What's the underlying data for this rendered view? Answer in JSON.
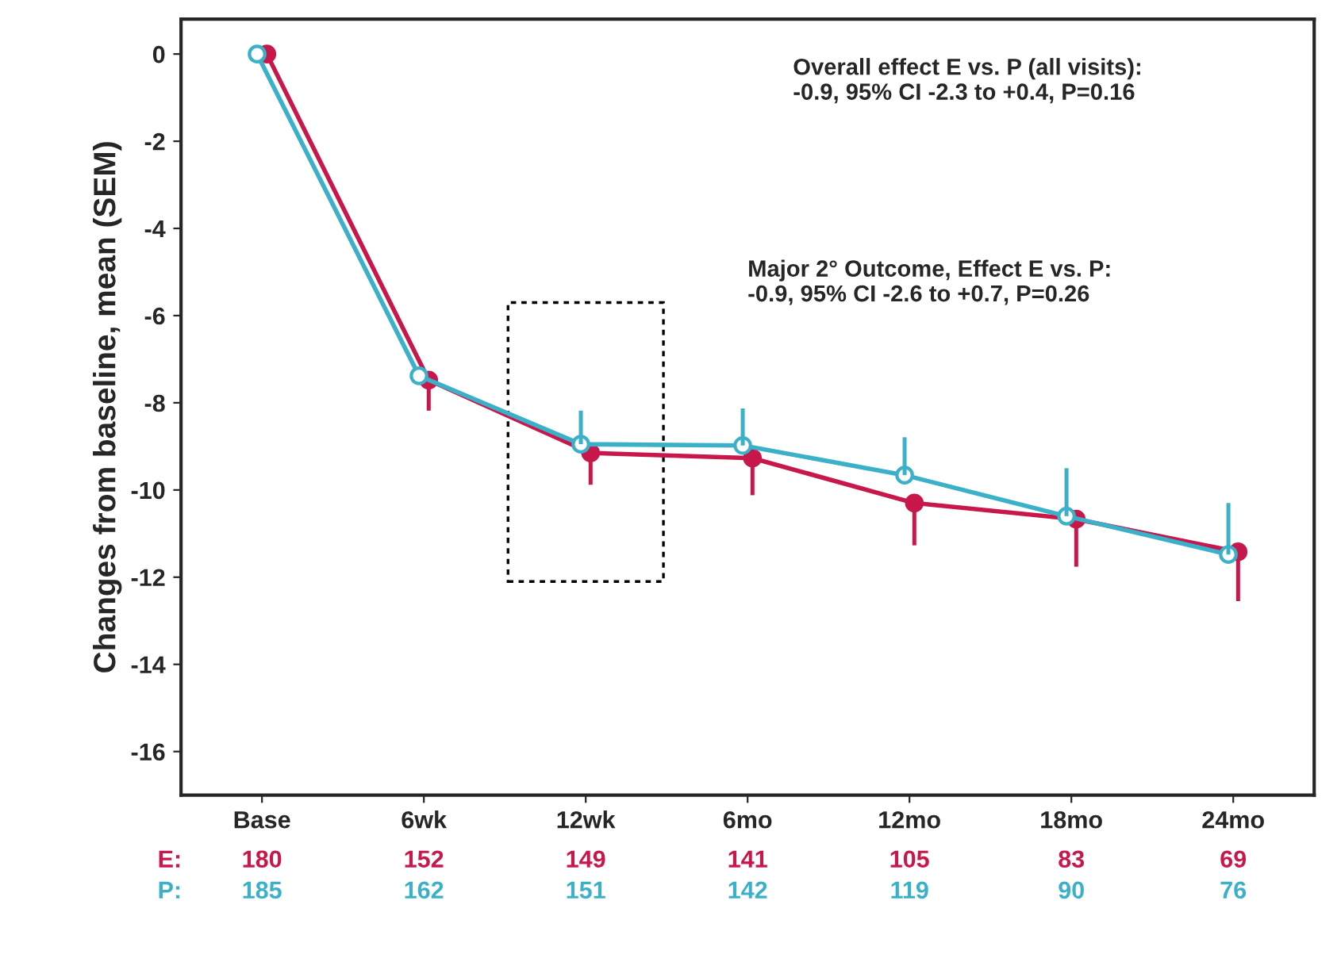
{
  "chart_data": {
    "type": "line",
    "ylabel": "Changes from baseline, mean (SEM)",
    "categories": [
      "Base",
      "6wk",
      "12wk",
      "6mo",
      "12mo",
      "18mo",
      "24mo"
    ],
    "series": [
      {
        "color": "#c8174a",
        "values": [
          0,
          -7.48,
          -9.15,
          -9.27,
          -10.3,
          -10.67,
          -11.42
        ],
        "errors": [
          null,
          [
            -8.18,
            -7.48
          ],
          [
            -9.88,
            -9.15
          ],
          [
            -10.12,
            -9.27
          ],
          [
            -11.27,
            -10.3
          ],
          [
            -11.76,
            -10.67
          ],
          [
            -12.55,
            -11.42
          ]
        ]
      },
      {
        "color": "#3bb0c9",
        "values": [
          0,
          -7.38,
          -8.95,
          -8.98,
          -9.66,
          -10.6,
          -11.48
        ],
        "errors": [
          null,
          null,
          [
            -8.95,
            -8.18
          ],
          [
            -8.98,
            -8.13
          ],
          [
            -9.66,
            -8.79
          ],
          [
            -10.6,
            -9.5
          ],
          [
            -11.48,
            -10.3
          ]
        ]
      }
    ],
    "ylim": [
      -17,
      0.8
    ],
    "yticks": [
      0,
      -2,
      -4,
      -6,
      -8,
      -10,
      -12,
      -14,
      -16
    ],
    "grid": false,
    "marker": "circle",
    "line_style": "solid",
    "annotations": [
      "Overall effect E vs. P (all visits):\n-0.9, 95% CI -2.3 to +0.4, P=0.16",
      "Major 2° Outcome, Effect E vs. P:\n-0.9, 95% CI -2.6 to +0.7, P=0.26",
      "E:",
      "180",
      "152",
      "149",
      "141",
      "105",
      "83",
      "69",
      "P:",
      "185",
      "162",
      "151",
      "142",
      "119",
      "90",
      "76"
    ]
  }
}
